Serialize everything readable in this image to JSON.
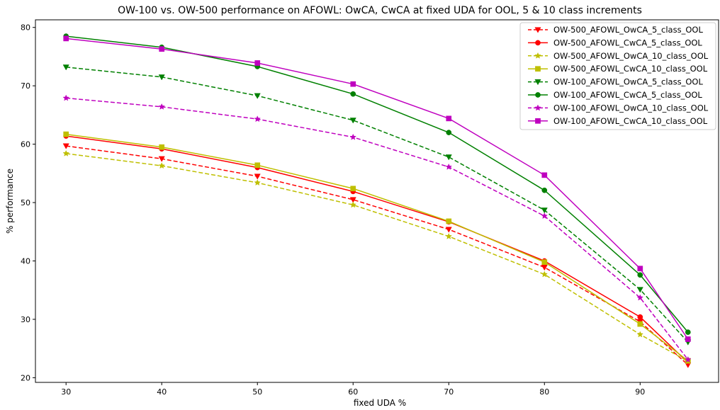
{
  "chart_data": {
    "type": "line",
    "title": "OW-100 vs. OW-500 performance on AFOWL: OwCA, CwCA at fixed UDA for OOL, 5 & 10 class increments",
    "xlabel": "fixed UDA %",
    "ylabel": "% performance",
    "xlim": [
      26.8,
      98.2
    ],
    "ylim": [
      19.2,
      81.3
    ],
    "xticks": [
      30,
      40,
      50,
      60,
      70,
      80,
      90
    ],
    "yticks": [
      20,
      30,
      40,
      50,
      60,
      70,
      80
    ],
    "grid": false,
    "legend_position": "top-right",
    "x": [
      30,
      40,
      50,
      60,
      70,
      80,
      90,
      95
    ],
    "series": [
      {
        "name": "OW-500_AFOWL_OwCA_5_class_OOL",
        "color": "#ff0000",
        "dash": "dashed",
        "marker": "triangle-down",
        "values": [
          59.7,
          57.5,
          54.5,
          50.5,
          45.4,
          38.9,
          29.6,
          22.2
        ]
      },
      {
        "name": "OW-500_AFOWL_CwCA_5_class_OOL",
        "color": "#ff0000",
        "dash": "solid",
        "marker": "circle",
        "values": [
          61.4,
          59.2,
          56.0,
          51.9,
          46.7,
          40.0,
          30.4,
          22.6
        ]
      },
      {
        "name": "OW-500_AFOWL_OwCA_10_class_OOL",
        "color": "#bfbf00",
        "dash": "dashed",
        "marker": "star",
        "values": [
          58.4,
          56.3,
          53.4,
          49.6,
          44.2,
          37.7,
          27.4,
          22.8
        ]
      },
      {
        "name": "OW-500_AFOWL_CwCA_10_class_OOL",
        "color": "#bfbf00",
        "dash": "solid",
        "marker": "square",
        "values": [
          61.7,
          59.5,
          56.4,
          52.4,
          46.8,
          39.8,
          29.2,
          22.9
        ]
      },
      {
        "name": "OW-100_AFOWL_OwCA_5_class_OOL",
        "color": "#008000",
        "dash": "dashed",
        "marker": "triangle-down",
        "values": [
          73.2,
          71.5,
          68.3,
          64.1,
          57.8,
          48.7,
          35.1,
          26.1
        ]
      },
      {
        "name": "OW-100_AFOWL_CwCA_5_class_OOL",
        "color": "#008000",
        "dash": "solid",
        "marker": "circle",
        "values": [
          78.5,
          76.6,
          73.3,
          68.6,
          62.0,
          52.1,
          37.6,
          27.8
        ]
      },
      {
        "name": "OW-100_AFOWL_OwCA_10_class_OOL",
        "color": "#bf00bf",
        "dash": "dashed",
        "marker": "star",
        "values": [
          67.9,
          66.4,
          64.3,
          61.2,
          56.1,
          47.7,
          33.7,
          23.1
        ]
      },
      {
        "name": "OW-100_AFOWL_CwCA_10_class_OOL",
        "color": "#bf00bf",
        "dash": "solid",
        "marker": "square",
        "values": [
          78.1,
          76.3,
          73.9,
          70.3,
          64.4,
          54.7,
          38.7,
          26.6
        ]
      }
    ]
  }
}
